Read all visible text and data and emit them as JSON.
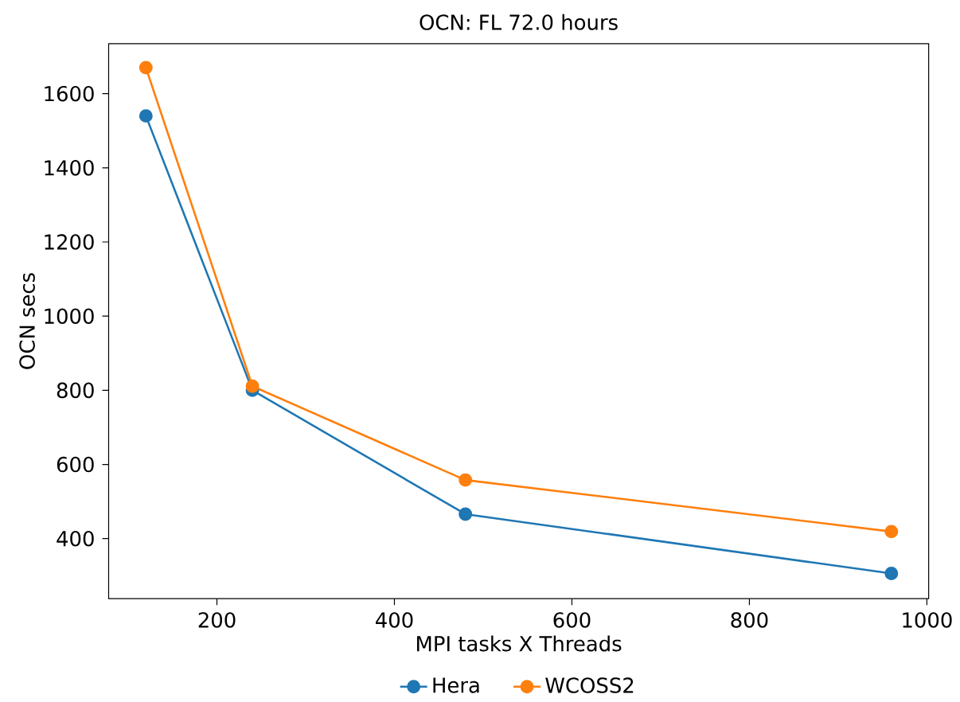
{
  "chart_data": {
    "type": "line",
    "title": "OCN: FL 72.0 hours",
    "xlabel": "MPI tasks X Threads",
    "ylabel": "OCN secs",
    "x": [
      120,
      240,
      480,
      960
    ],
    "series": [
      {
        "name": "Hera",
        "color": "#1f77b4",
        "values": [
          1540,
          800,
          466,
          306
        ]
      },
      {
        "name": "WCOSS2",
        "color": "#ff7f0e",
        "values": [
          1670,
          811,
          558,
          419
        ]
      }
    ],
    "xlim": [
      78,
      1002
    ],
    "ylim": [
      238,
      1735
    ],
    "xticks": [
      200,
      400,
      600,
      800,
      1000
    ],
    "yticks": [
      400,
      600,
      800,
      1000,
      1200,
      1400,
      1600
    ],
    "marker": "circle",
    "line_style": "solid",
    "legend": "bottom",
    "grid": false
  }
}
